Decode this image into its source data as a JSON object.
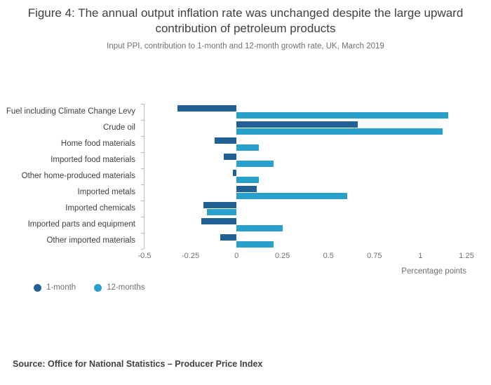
{
  "figure": {
    "title": "Figure 4: The annual output inflation rate was unchanged despite the large upward contribution of petroleum products",
    "subtitle": "Input PPI, contribution to 1-month and 12-month growth rate, UK, March 2019",
    "source": "Source: Office for National Statistics – Producer Price Index"
  },
  "chart_data": {
    "type": "bar",
    "orientation": "horizontal",
    "title": "Figure 4: The annual output inflation rate was unchanged despite the large upward contribution of petroleum products",
    "subtitle": "Input PPI, contribution to 1-month and 12-month growth rate, UK, March 2019",
    "categories": [
      "Fuel including Climate Change Levy",
      "Crude oil",
      "Home food materials",
      "Imported food materials",
      "Other home-produced materials",
      "Imported metals",
      "Imported chemicals",
      "Imported parts and equipment",
      "Other imported materials"
    ],
    "series": [
      {
        "name": "1-month",
        "color": "#206095",
        "values": [
          -0.32,
          0.66,
          -0.12,
          -0.07,
          -0.02,
          0.11,
          -0.18,
          -0.19,
          -0.09
        ]
      },
      {
        "name": "12-months",
        "color": "#27A0CC",
        "values": [
          1.15,
          1.12,
          0.12,
          0.2,
          0.12,
          0.6,
          -0.16,
          0.25,
          0.2
        ]
      }
    ],
    "xlabel": "Percentage points",
    "ylabel": "",
    "xlim": [
      -0.5,
      1.25
    ],
    "xticks": [
      -0.5,
      -0.25,
      0,
      0.25,
      0.5,
      0.75,
      1,
      1.25
    ],
    "xtick_labels": [
      "-0.5",
      "-0.25",
      "0",
      "0.25",
      "0.5",
      "0.75",
      "1",
      "1.25"
    ],
    "grid": false,
    "legend_position": "bottom-left"
  }
}
